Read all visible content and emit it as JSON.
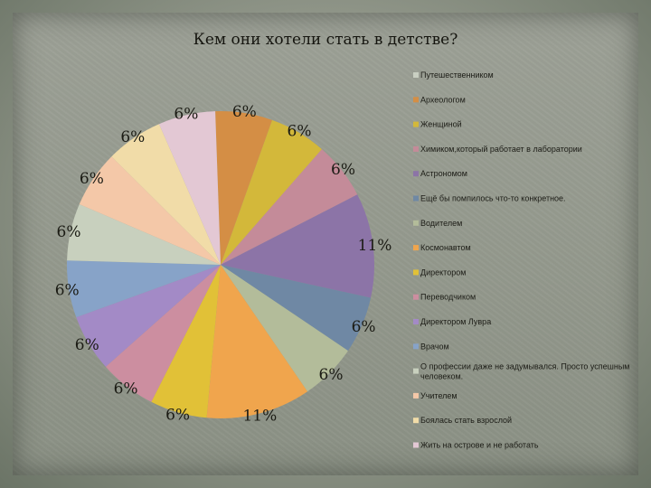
{
  "chart_data": {
    "type": "pie",
    "title": "Кем они хотели стать в детстве?",
    "series": [
      {
        "name": "Путешественником",
        "value": 0,
        "label": "",
        "color": "#c9cfc2"
      },
      {
        "name": "Археологом",
        "value": 6,
        "label": "6%",
        "color": "#d48e45"
      },
      {
        "name": "Женщиной",
        "value": 6,
        "label": "6%",
        "color": "#d3b83a"
      },
      {
        "name": "Химиком,который работает в лаборатории",
        "value": 6,
        "label": "6%",
        "color": "#c48b99"
      },
      {
        "name": "Астрономом",
        "value": 11,
        "label": "11%",
        "color": "#8c74a7"
      },
      {
        "name": "Ещё бы помпилось что-то конкретное.",
        "value": 6,
        "label": "6%",
        "color": "#6f88a4"
      },
      {
        "name": "Водителем",
        "value": 6,
        "label": "6%",
        "color": "#b3bc9a"
      },
      {
        "name": "Космонавтом",
        "value": 11,
        "label": "11%",
        "color": "#f0a54d"
      },
      {
        "name": "Директором",
        "value": 6,
        "label": "6%",
        "color": "#e1c137"
      },
      {
        "name": "Переводчиком",
        "value": 6,
        "label": "6%",
        "color": "#cc8ea0"
      },
      {
        "name": "Директором Лувра",
        "value": 6,
        "label": "6%",
        "color": "#a38ac6"
      },
      {
        "name": "Врачом",
        "value": 6,
        "label": "6%",
        "color": "#87a3c8"
      },
      {
        "name": "О профессии даже не задумывался. Просто успешным человеком.",
        "value": 6,
        "label": "6%",
        "color": "#c8d0be"
      },
      {
        "name": "Учителем",
        "value": 6,
        "label": "6%",
        "color": "#f4c8a8"
      },
      {
        "name": "Боялась стать взрослой",
        "value": 6,
        "label": "6%",
        "color": "#f1dca8"
      },
      {
        "name": "Жить на острове и не работать",
        "value": 6,
        "label": "6%",
        "color": "#e3c8d4"
      }
    ],
    "legend_position": "right"
  }
}
